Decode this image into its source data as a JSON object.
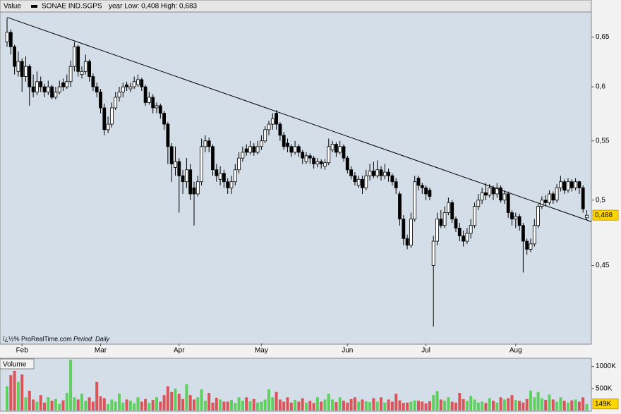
{
  "chart_data": {
    "type": "candlestick",
    "legend_label": "Value",
    "title": "SONAE IND.SGPS",
    "subtitle": "year Low: 0,408 High: 0,683",
    "footer": "ï¿½% ProRealTime.com",
    "period": "Period: Daily",
    "log": true,
    "ylim": [
      0.397,
      0.676
    ],
    "yticks": [
      {
        "value": 0.45,
        "label": "0,45"
      },
      {
        "value": 0.5,
        "label": "0,5"
      },
      {
        "value": 0.55,
        "label": "0,55"
      },
      {
        "value": 0.6,
        "label": "0,6"
      },
      {
        "value": 0.65,
        "label": "0,65"
      }
    ],
    "up_color": "#ffffff",
    "down_color": "#000000",
    "last_value_label": "0,488",
    "trendline": {
      "x": [
        0,
        156.2
      ],
      "y": [
        0.671,
        0.483
      ]
    },
    "categories": [
      null,
      null,
      null,
      null,
      "Feb",
      null,
      null,
      null,
      null,
      null,
      null,
      null,
      null,
      null,
      null,
      null,
      null,
      null,
      null,
      null,
      null,
      null,
      null,
      null,
      null,
      "Mar",
      null,
      null,
      null,
      null,
      null,
      null,
      null,
      null,
      null,
      null,
      null,
      null,
      null,
      null,
      null,
      null,
      null,
      null,
      null,
      null,
      "Apr",
      null,
      null,
      null,
      null,
      null,
      null,
      null,
      null,
      null,
      null,
      null,
      null,
      null,
      null,
      null,
      null,
      null,
      null,
      null,
      null,
      null,
      "May",
      null,
      null,
      null,
      null,
      null,
      null,
      null,
      null,
      null,
      null,
      null,
      null,
      null,
      null,
      null,
      null,
      null,
      null,
      null,
      null,
      null,
      null,
      "Jun",
      null,
      null,
      null,
      null,
      null,
      null,
      null,
      null,
      null,
      null,
      null,
      null,
      null,
      null,
      null,
      null,
      null,
      null,
      null,
      null,
      "Jul",
      null,
      null,
      null,
      null,
      null,
      null,
      null,
      null,
      null,
      null,
      null,
      null,
      null,
      null,
      null,
      null,
      null,
      null,
      null,
      null,
      null,
      null,
      null,
      "Aug",
      null,
      null,
      null,
      null,
      null,
      null,
      null,
      null,
      null,
      null,
      null,
      null,
      null,
      null,
      null,
      null,
      null,
      null,
      null
    ],
    "ohlc": [
      [
        0.645,
        0.67,
        0.64,
        0.655
      ],
      [
        0.655,
        0.658,
        0.632,
        0.64
      ],
      [
        0.64,
        0.642,
        0.612,
        0.62
      ],
      [
        0.615,
        0.635,
        0.61,
        0.625
      ],
      [
        0.625,
        0.628,
        0.595,
        0.61
      ],
      [
        0.61,
        0.63,
        0.605,
        0.62
      ],
      [
        0.62,
        0.622,
        0.582,
        0.6
      ],
      [
        0.6,
        0.612,
        0.59,
        0.595
      ],
      [
        0.595,
        0.615,
        0.592,
        0.605
      ],
      [
        0.605,
        0.61,
        0.595,
        0.6
      ],
      [
        0.6,
        0.603,
        0.59,
        0.595
      ],
      [
        0.595,
        0.606,
        0.592,
        0.6
      ],
      [
        0.6,
        0.602,
        0.588,
        0.59
      ],
      [
        0.59,
        0.6,
        0.588,
        0.595
      ],
      [
        0.595,
        0.606,
        0.593,
        0.6
      ],
      [
        0.604,
        0.608,
        0.596,
        0.6
      ],
      [
        0.6,
        0.612,
        0.598,
        0.605
      ],
      [
        0.605,
        0.626,
        0.6,
        0.62
      ],
      [
        0.62,
        0.645,
        0.615,
        0.64
      ],
      [
        0.64,
        0.642,
        0.61,
        0.615
      ],
      [
        0.612,
        0.62,
        0.608,
        0.615
      ],
      [
        0.615,
        0.632,
        0.612,
        0.625
      ],
      [
        0.625,
        0.627,
        0.605,
        0.61
      ],
      [
        0.61,
        0.613,
        0.596,
        0.6
      ],
      [
        0.6,
        0.604,
        0.59,
        0.595
      ],
      [
        0.595,
        0.598,
        0.575,
        0.58
      ],
      [
        0.58,
        0.584,
        0.555,
        0.56
      ],
      [
        0.56,
        0.572,
        0.557,
        0.565
      ],
      [
        0.565,
        0.585,
        0.562,
        0.58
      ],
      [
        0.58,
        0.595,
        0.578,
        0.59
      ],
      [
        0.59,
        0.6,
        0.586,
        0.595
      ],
      [
        0.595,
        0.604,
        0.59,
        0.6
      ],
      [
        0.602,
        0.605,
        0.596,
        0.6
      ],
      [
        0.598,
        0.604,
        0.595,
        0.6
      ],
      [
        0.6,
        0.61,
        0.598,
        0.605
      ],
      [
        0.602,
        0.612,
        0.6,
        0.607
      ],
      [
        0.607,
        0.609,
        0.596,
        0.6
      ],
      [
        0.6,
        0.602,
        0.582,
        0.585
      ],
      [
        0.585,
        0.595,
        0.583,
        0.59
      ],
      [
        0.59,
        0.593,
        0.575,
        0.58
      ],
      [
        0.58,
        0.585,
        0.575,
        0.582
      ],
      [
        0.582,
        0.584,
        0.57,
        0.575
      ],
      [
        0.575,
        0.577,
        0.56,
        0.565
      ],
      [
        0.565,
        0.567,
        0.53,
        0.545
      ],
      [
        0.545,
        0.548,
        0.515,
        0.53
      ],
      [
        0.527,
        0.545,
        0.52,
        0.532
      ],
      [
        0.532,
        0.535,
        0.49,
        0.52
      ],
      [
        0.52,
        0.525,
        0.505,
        0.515
      ],
      [
        0.515,
        0.535,
        0.51,
        0.525
      ],
      [
        0.525,
        0.53,
        0.5,
        0.505
      ],
      [
        0.51,
        0.515,
        0.48,
        0.505
      ],
      [
        0.505,
        0.52,
        0.503,
        0.515
      ],
      [
        0.515,
        0.552,
        0.512,
        0.545
      ],
      [
        0.545,
        0.555,
        0.54,
        0.55
      ],
      [
        0.55,
        0.553,
        0.54,
        0.545
      ],
      [
        0.545,
        0.547,
        0.52,
        0.525
      ],
      [
        0.525,
        0.53,
        0.515,
        0.52
      ],
      [
        0.517,
        0.528,
        0.512,
        0.522
      ],
      [
        0.522,
        0.525,
        0.51,
        0.515
      ],
      [
        0.515,
        0.518,
        0.505,
        0.51
      ],
      [
        0.51,
        0.52,
        0.505,
        0.515
      ],
      [
        0.515,
        0.53,
        0.512,
        0.525
      ],
      [
        0.525,
        0.54,
        0.522,
        0.535
      ],
      [
        0.535,
        0.545,
        0.532,
        0.54
      ],
      [
        0.543,
        0.547,
        0.537,
        0.54
      ],
      [
        0.54,
        0.55,
        0.538,
        0.545
      ],
      [
        0.545,
        0.548,
        0.537,
        0.54
      ],
      [
        0.54,
        0.55,
        0.538,
        0.545
      ],
      [
        0.545,
        0.555,
        0.542,
        0.55
      ],
      [
        0.55,
        0.563,
        0.548,
        0.56
      ],
      [
        0.56,
        0.568,
        0.555,
        0.565
      ],
      [
        0.565,
        0.575,
        0.56,
        0.57
      ],
      [
        0.575,
        0.578,
        0.56,
        0.565
      ],
      [
        0.565,
        0.567,
        0.55,
        0.555
      ],
      [
        0.555,
        0.558,
        0.542,
        0.545
      ],
      [
        0.548,
        0.552,
        0.54,
        0.545
      ],
      [
        0.545,
        0.547,
        0.536,
        0.54
      ],
      [
        0.54,
        0.55,
        0.538,
        0.545
      ],
      [
        0.545,
        0.547,
        0.536,
        0.54
      ],
      [
        0.54,
        0.542,
        0.53,
        0.535
      ],
      [
        0.532,
        0.54,
        0.53,
        0.537
      ],
      [
        0.537,
        0.539,
        0.53,
        0.535
      ],
      [
        0.535,
        0.537,
        0.526,
        0.53
      ],
      [
        0.53,
        0.535,
        0.527,
        0.532
      ],
      [
        0.532,
        0.534,
        0.526,
        0.53
      ],
      [
        0.528,
        0.534,
        0.525,
        0.531
      ],
      [
        0.531,
        0.552,
        0.529,
        0.545
      ],
      [
        0.542,
        0.55,
        0.54,
        0.547
      ],
      [
        0.547,
        0.549,
        0.536,
        0.54
      ],
      [
        0.54,
        0.55,
        0.538,
        0.545
      ],
      [
        0.545,
        0.547,
        0.532,
        0.535
      ],
      [
        0.535,
        0.537,
        0.522,
        0.525
      ],
      [
        0.525,
        0.528,
        0.517,
        0.52
      ],
      [
        0.52,
        0.523,
        0.512,
        0.515
      ],
      [
        0.512,
        0.52,
        0.51,
        0.517
      ],
      [
        0.517,
        0.52,
        0.505,
        0.51
      ],
      [
        0.51,
        0.525,
        0.508,
        0.52
      ],
      [
        0.52,
        0.53,
        0.516,
        0.524
      ],
      [
        0.524,
        0.532,
        0.518,
        0.52
      ],
      [
        0.52,
        0.533,
        0.518,
        0.525
      ],
      [
        0.525,
        0.528,
        0.516,
        0.52
      ],
      [
        0.52,
        0.53,
        0.517,
        0.523
      ],
      [
        0.523,
        0.526,
        0.515,
        0.52
      ],
      [
        0.52,
        0.522,
        0.512,
        0.515
      ],
      [
        0.515,
        0.518,
        0.505,
        0.51
      ],
      [
        0.505,
        0.507,
        0.48,
        0.485
      ],
      [
        0.485,
        0.488,
        0.465,
        0.47
      ],
      [
        0.47,
        0.473,
        0.462,
        0.465
      ],
      [
        0.465,
        0.49,
        0.463,
        0.485
      ],
      [
        0.485,
        0.52,
        0.483,
        0.515
      ],
      [
        0.518,
        0.52,
        0.508,
        0.512
      ],
      [
        0.512,
        0.514,
        0.505,
        0.51
      ],
      [
        0.51,
        0.512,
        0.5,
        0.505
      ],
      [
        0.508,
        0.51,
        0.5,
        0.503
      ],
      [
        0.45,
        0.472,
        0.408,
        0.468
      ],
      [
        0.468,
        0.49,
        0.465,
        0.485
      ],
      [
        0.485,
        0.492,
        0.478,
        0.48
      ],
      [
        0.48,
        0.495,
        0.478,
        0.49
      ],
      [
        0.49,
        0.502,
        0.488,
        0.498
      ],
      [
        0.498,
        0.5,
        0.482,
        0.485
      ],
      [
        0.485,
        0.487,
        0.475,
        0.478
      ],
      [
        0.478,
        0.482,
        0.468,
        0.472
      ],
      [
        0.472,
        0.476,
        0.464,
        0.468
      ],
      [
        0.468,
        0.478,
        0.466,
        0.474
      ],
      [
        0.474,
        0.485,
        0.47,
        0.48
      ],
      [
        0.48,
        0.498,
        0.478,
        0.495
      ],
      [
        0.495,
        0.505,
        0.492,
        0.5
      ],
      [
        0.5,
        0.51,
        0.497,
        0.506
      ],
      [
        0.506,
        0.514,
        0.5,
        0.504
      ],
      [
        0.504,
        0.513,
        0.502,
        0.51
      ],
      [
        0.51,
        0.512,
        0.5,
        0.505
      ],
      [
        0.505,
        0.514,
        0.502,
        0.51
      ],
      [
        0.51,
        0.512,
        0.498,
        0.5
      ],
      [
        0.5,
        0.508,
        0.497,
        0.505
      ],
      [
        0.505,
        0.507,
        0.486,
        0.49
      ],
      [
        0.49,
        0.492,
        0.48,
        0.485
      ],
      [
        0.485,
        0.49,
        0.478,
        0.487
      ],
      [
        0.487,
        0.489,
        0.476,
        0.48
      ],
      [
        0.48,
        0.482,
        0.445,
        0.468
      ],
      [
        0.468,
        0.47,
        0.458,
        0.462
      ],
      [
        0.462,
        0.47,
        0.46,
        0.466
      ],
      [
        0.466,
        0.485,
        0.464,
        0.48
      ],
      [
        0.48,
        0.497,
        0.478,
        0.495
      ],
      [
        0.495,
        0.503,
        0.493,
        0.5
      ],
      [
        0.5,
        0.504,
        0.495,
        0.498
      ],
      [
        0.498,
        0.508,
        0.496,
        0.505
      ],
      [
        0.505,
        0.507,
        0.497,
        0.5
      ],
      [
        0.5,
        0.513,
        0.498,
        0.51
      ],
      [
        0.51,
        0.52,
        0.507,
        0.515
      ],
      [
        0.515,
        0.517,
        0.505,
        0.508
      ],
      [
        0.508,
        0.518,
        0.506,
        0.515
      ],
      [
        0.515,
        0.517,
        0.507,
        0.51
      ],
      [
        0.51,
        0.518,
        0.508,
        0.515
      ],
      [
        0.515,
        0.516,
        0.505,
        0.51
      ],
      [
        0.51,
        0.512,
        0.49,
        0.493
      ],
      [
        0.486,
        0.492,
        0.484,
        0.488
      ]
    ],
    "volume": {
      "label": "Volume",
      "up_color": "#5fcf5f",
      "down_color": "#d9555a",
      "ylim": [
        0,
        1170000
      ],
      "yticks": [
        {
          "value": 500000,
          "label": "500K"
        },
        {
          "value": 1000000,
          "label": "1000K"
        }
      ],
      "last_value_label": "149K",
      "values": [
        550000,
        800000,
        900000,
        650000,
        820000,
        300000,
        450000,
        250000,
        200000,
        350000,
        180000,
        300000,
        220000,
        260000,
        150000,
        230000,
        400000,
        1150000,
        300000,
        250000,
        380000,
        220000,
        300000,
        200000,
        650000,
        320000,
        280000,
        150000,
        250000,
        200000,
        380000,
        180000,
        250000,
        220000,
        160000,
        300000,
        200000,
        260000,
        170000,
        240000,
        300000,
        200000,
        350000,
        550000,
        420000,
        500000,
        380000,
        260000,
        600000,
        350000,
        250000,
        300000,
        480000,
        220000,
        400000,
        180000,
        290000,
        250000,
        200000,
        200000,
        240000,
        170000,
        300000,
        220000,
        300000,
        210000,
        260000,
        180000,
        200000,
        250000,
        480000,
        300000,
        420000,
        250000,
        200000,
        300000,
        180000,
        240000,
        200000,
        280000,
        180000,
        220000,
        170000,
        300000,
        200000,
        250000,
        380000,
        250000,
        190000,
        300000,
        220000,
        180000,
        260000,
        300000,
        200000,
        250000,
        210000,
        190000,
        280000,
        200000,
        300000,
        180000,
        250000,
        200000,
        380000,
        230000,
        170000,
        180000,
        200000,
        230000,
        220000,
        200000,
        160000,
        210000,
        350000,
        440000,
        250000,
        220000,
        300000,
        200000,
        180000,
        400000,
        260000,
        220000,
        330000,
        250000,
        180000,
        200000,
        170000,
        280000,
        220000,
        180000,
        300000,
        250000,
        280000,
        350000,
        240000,
        220000,
        180000,
        260000,
        450000,
        300000,
        420000,
        280000,
        240000,
        360000,
        250000,
        200000,
        300000,
        220000,
        180000,
        230000,
        250000,
        200000,
        300000,
        149000
      ]
    }
  }
}
